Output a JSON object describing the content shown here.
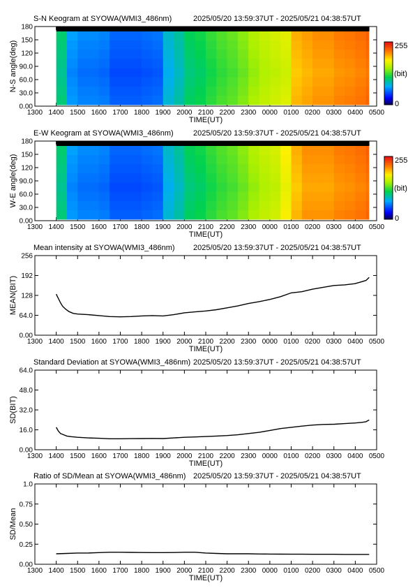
{
  "chart_data": [
    {
      "type": "heatmap",
      "title": "S-N Keogram at SYOWA(WMI3_486nm)",
      "time_range": "2025/05/20 13:59:37UT - 2025/05/21 04:38:57UT",
      "xlabel": "TIME(UT)",
      "ylabel": "N-S angle(deg)",
      "x_ticks": [
        "1300",
        "1400",
        "1500",
        "1600",
        "1700",
        "1800",
        "1900",
        "2000",
        "2100",
        "2200",
        "2300",
        "0000",
        "0100",
        "0200",
        "0300",
        "0400",
        "0500"
      ],
      "y_ticks": [
        "0.00",
        "30.0",
        "60.0",
        "90.0",
        "120",
        "150",
        "180"
      ],
      "ylim": [
        0,
        180
      ],
      "colorbar": {
        "min_label": "0",
        "unit_label": "(bit)",
        "max_label": "255",
        "range": [
          0,
          255
        ]
      },
      "intensity_profile": {
        "times": [
          "1400",
          "1430",
          "1500",
          "1530",
          "1600",
          "1630",
          "1700",
          "1730",
          "1800",
          "1830",
          "1900",
          "1930",
          "2000",
          "2030",
          "2100",
          "2130",
          "2200",
          "2230",
          "2300",
          "2330",
          "0000",
          "0030",
          "0100",
          "0130",
          "0200",
          "0230",
          "0300",
          "0330",
          "0400",
          "0430",
          "0438"
        ],
        "values": [
          100,
          66,
          60,
          60,
          58,
          50,
          50,
          50,
          52,
          54,
          80,
          90,
          105,
          110,
          118,
          125,
          130,
          138,
          148,
          155,
          160,
          165,
          195,
          200,
          205,
          205,
          210,
          212,
          215,
          220,
          235
        ]
      }
    },
    {
      "type": "heatmap",
      "title": "E-W Keogram at SYOWA(WMI3_486nm)",
      "time_range": "2025/05/20 13:59:37UT - 2025/05/21 04:38:57UT",
      "xlabel": "TIME(UT)",
      "ylabel": "W-E angle(deg)",
      "x_ticks": [
        "1300",
        "1400",
        "1500",
        "1600",
        "1700",
        "1800",
        "1900",
        "2000",
        "2100",
        "2200",
        "2300",
        "0000",
        "0100",
        "0200",
        "0300",
        "0400",
        "0500"
      ],
      "y_ticks": [
        "0.00",
        "30.0",
        "60.0",
        "90.0",
        "120",
        "150",
        "180"
      ],
      "ylim": [
        0,
        180
      ],
      "colorbar": {
        "min_label": "0",
        "unit_label": "(bit)",
        "max_label": "255",
        "range": [
          0,
          255
        ]
      },
      "intensity_profile": {
        "times": [
          "1400",
          "1430",
          "1500",
          "1530",
          "1600",
          "1630",
          "1700",
          "1730",
          "1800",
          "1830",
          "1900",
          "1930",
          "2000",
          "2030",
          "2100",
          "2130",
          "2200",
          "2230",
          "2300",
          "2330",
          "0000",
          "0030",
          "0100",
          "0130",
          "0200",
          "0230",
          "0300",
          "0330",
          "0400",
          "0430",
          "0438"
        ],
        "values": [
          100,
          66,
          60,
          60,
          58,
          50,
          50,
          50,
          52,
          54,
          80,
          90,
          105,
          110,
          118,
          125,
          130,
          138,
          148,
          155,
          160,
          175,
          195,
          205,
          205,
          205,
          210,
          212,
          215,
          220,
          235
        ]
      }
    },
    {
      "type": "line",
      "title": "Mean intensity at SYOWA(WMI3_486nm)",
      "time_range": "2025/05/20 13:59:37UT - 2025/05/21 04:38:57UT",
      "xlabel": "TIME(UT)",
      "ylabel": "MEAN(BIT)",
      "x_ticks": [
        "1300",
        "1400",
        "1500",
        "1600",
        "1700",
        "1800",
        "1900",
        "2000",
        "2100",
        "2200",
        "2300",
        "0000",
        "0100",
        "0200",
        "0300",
        "0400",
        "0500"
      ],
      "y_ticks": [
        "0.00",
        "64.0",
        "128",
        "192",
        "256"
      ],
      "ylim": [
        0,
        256
      ],
      "series": [
        {
          "x": [
            0.0,
            0.1,
            0.2,
            0.3,
            0.45,
            0.6,
            0.8,
            1.0,
            1.5,
            2.0,
            2.5,
            3.0,
            3.5,
            4.0,
            4.5,
            5.0,
            5.5,
            6.0,
            6.5,
            7.0,
            7.5,
            8.0,
            8.5,
            9.0,
            9.5,
            10.0,
            10.5,
            11.0,
            11.5,
            12.0,
            12.5,
            13.0,
            13.5,
            14.0,
            14.3,
            14.5,
            14.65
          ],
          "y": [
            132,
            118,
            104,
            93,
            83,
            76,
            70,
            68,
            66,
            63,
            60,
            59,
            60,
            62,
            63,
            62,
            66,
            72,
            75,
            78,
            82,
            88,
            94,
            102,
            108,
            115,
            124,
            136,
            140,
            148,
            154,
            160,
            162,
            166,
            172,
            176,
            186
          ]
        }
      ]
    },
    {
      "type": "line",
      "title": "Standard Deviation at SYOWA(WMI3_486nm)",
      "time_range": "2025/05/20 13:59:37UT - 2025/05/21 04:38:57UT",
      "xlabel": "TIME(UT)",
      "ylabel": "SD(BIT)",
      "x_ticks": [
        "1300",
        "1400",
        "1500",
        "1600",
        "1700",
        "1800",
        "1900",
        "2000",
        "2100",
        "2200",
        "2300",
        "0000",
        "0100",
        "0200",
        "0300",
        "0400",
        "0500"
      ],
      "y_ticks": [
        "0.00",
        "16.0",
        "32.0",
        "48.0",
        "64.0"
      ],
      "ylim": [
        0,
        64
      ],
      "series": [
        {
          "x": [
            0.0,
            0.1,
            0.2,
            0.35,
            0.5,
            0.7,
            1.0,
            1.5,
            2.0,
            2.5,
            3.0,
            3.5,
            4.0,
            4.5,
            5.0,
            5.5,
            6.0,
            6.5,
            7.0,
            7.5,
            8.0,
            8.5,
            9.0,
            9.5,
            10.0,
            10.5,
            11.0,
            11.5,
            12.0,
            12.5,
            13.0,
            13.5,
            14.0,
            14.3,
            14.5,
            14.65
          ],
          "y": [
            18,
            15,
            13,
            12,
            11,
            10.5,
            10,
            9.5,
            9.2,
            8.8,
            8.8,
            8.9,
            9.0,
            9.1,
            9.0,
            9.5,
            10.0,
            10.3,
            10.6,
            11.0,
            11.4,
            12.0,
            13.0,
            14.0,
            15.5,
            17.0,
            18.0,
            19.0,
            19.8,
            20.3,
            20.5,
            21.0,
            21.5,
            22.0,
            22.5,
            24.0
          ]
        }
      ]
    },
    {
      "type": "line",
      "title": "Ratio of SD/Mean at SYOWA(WMI3_486nm)",
      "time_range": "2025/05/20 13:59:37UT - 2025/05/21 04:38:57UT",
      "xlabel": "TIME(UT)",
      "ylabel": "SD/Mean",
      "x_ticks": [
        "1300",
        "1400",
        "1500",
        "1600",
        "1700",
        "1800",
        "1900",
        "2000",
        "2100",
        "2200",
        "2300",
        "0000",
        "0100",
        "0200",
        "0300",
        "0400",
        "0500"
      ],
      "y_ticks": [
        "0.00",
        "0.25",
        "0.50",
        "0.75",
        "1.0"
      ],
      "ylim": [
        0,
        1.0
      ],
      "series": [
        {
          "x": [
            0.0,
            0.5,
            1.0,
            1.5,
            2.0,
            2.5,
            3.0,
            3.5,
            4.0,
            4.5,
            5.0,
            5.5,
            6.0,
            6.5,
            7.0,
            7.5,
            8.0,
            8.5,
            9.0,
            9.5,
            10.0,
            10.5,
            11.0,
            11.5,
            12.0,
            12.5,
            13.0,
            13.5,
            14.0,
            14.65
          ],
          "y": [
            0.13,
            0.135,
            0.14,
            0.14,
            0.145,
            0.15,
            0.15,
            0.148,
            0.146,
            0.145,
            0.145,
            0.146,
            0.15,
            0.15,
            0.14,
            0.135,
            0.13,
            0.13,
            0.13,
            0.128,
            0.127,
            0.126,
            0.125,
            0.125,
            0.124,
            0.124,
            0.124,
            0.123,
            0.123,
            0.123
          ]
        }
      ]
    }
  ]
}
